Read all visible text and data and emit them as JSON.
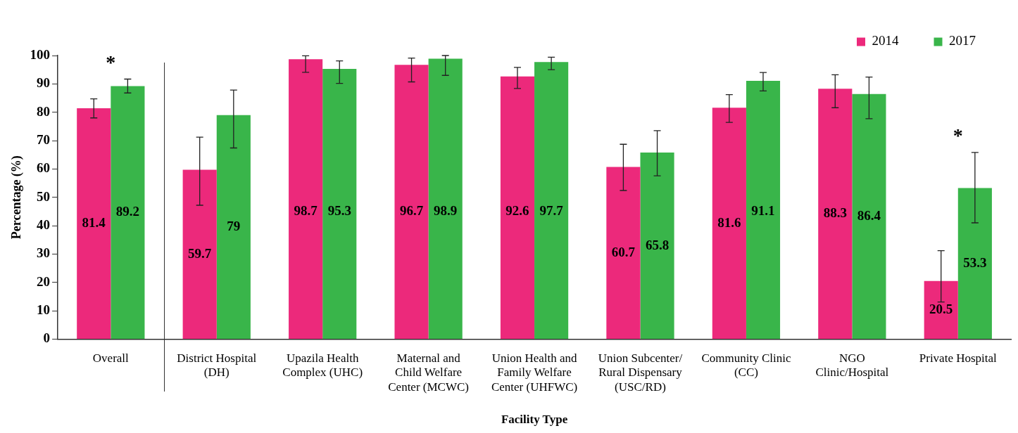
{
  "chart_data": {
    "type": "bar",
    "xlabel": "Facility Type",
    "ylabel": "Percentage (%)",
    "categories": [
      "Overall",
      "District Hospital (DH)",
      "Upazila Health Complex (UHC)",
      "Maternal and Child Welfare Center (MCWC)",
      "Union Health and Family Welfare Center (UHFWC)",
      "Union Subcenter/ Rural Dispensary (USC/RD)",
      "Community Clinic (CC)",
      "NGO Clinic/Hospital",
      "Private Hospital"
    ],
    "series": [
      {
        "name": "2014",
        "color": "#ec297b",
        "values": [
          81.4,
          59.7,
          98.7,
          96.7,
          92.6,
          60.7,
          81.6,
          88.3,
          20.5
        ],
        "errors": [
          [
            78.0,
            84.7
          ],
          [
            47.2,
            71.2
          ],
          [
            94.1,
            99.9
          ],
          [
            90.7,
            99.1
          ],
          [
            88.4,
            95.8
          ],
          [
            52.4,
            68.7
          ],
          [
            76.4,
            86.2
          ],
          [
            81.6,
            93.2
          ],
          [
            13.1,
            31.2
          ]
        ]
      },
      {
        "name": "2017",
        "color": "#39b54a",
        "values": [
          89.2,
          79,
          95.3,
          98.9,
          97.7,
          65.8,
          91.1,
          86.4,
          53.3
        ],
        "errors": [
          [
            86.8,
            91.7
          ],
          [
            67.4,
            87.8
          ],
          [
            90.2,
            98.1
          ],
          [
            93.0,
            100
          ],
          [
            95.0,
            99.4
          ],
          [
            57.6,
            73.5
          ],
          [
            87.5,
            94.0
          ],
          [
            77.7,
            92.4
          ],
          [
            41.0,
            65.8
          ]
        ]
      }
    ],
    "ylim": [
      0,
      100
    ],
    "yticks": [
      0,
      10,
      20,
      30,
      40,
      50,
      60,
      70,
      80,
      90,
      100
    ],
    "data_labels": true,
    "grid": false,
    "legend": "top right",
    "annotations": [
      "*",
      "*"
    ]
  }
}
